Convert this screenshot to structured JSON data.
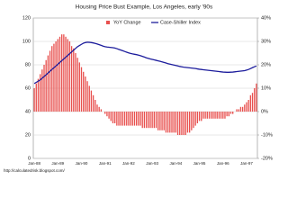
{
  "chart_data": {
    "type": "bar",
    "title": "Housing Price Bust Example, Los Angeles, early '90s",
    "source": "http://calculatedrisk.blogspot.com/",
    "categories": [
      "Jan-88",
      null,
      null,
      null,
      null,
      null,
      null,
      null,
      null,
      null,
      null,
      null,
      "Jan-89",
      null,
      null,
      null,
      null,
      null,
      null,
      null,
      null,
      null,
      null,
      null,
      "Jan-90",
      null,
      null,
      null,
      null,
      null,
      null,
      null,
      null,
      null,
      null,
      null,
      "Jan-91",
      null,
      null,
      null,
      null,
      null,
      null,
      null,
      null,
      null,
      null,
      null,
      "Jan-92",
      null,
      null,
      null,
      null,
      null,
      null,
      null,
      null,
      null,
      null,
      null,
      "Jan-93",
      null,
      null,
      null,
      null,
      null,
      null,
      null,
      null,
      null,
      null,
      null,
      "Jan-94",
      null,
      null,
      null,
      null,
      null,
      null,
      null,
      null,
      null,
      null,
      null,
      "Jan-95",
      null,
      null,
      null,
      null,
      null,
      null,
      null,
      null,
      null,
      null,
      null,
      "Jan-96",
      null,
      null,
      null,
      null,
      null,
      null,
      null,
      null,
      null,
      null,
      null,
      "Jan-97",
      null,
      null,
      null,
      null,
      null
    ],
    "series": [
      {
        "name": "YoY Change",
        "color": "#e8504e",
        "type": "bar",
        "axis": "y2",
        "values": [
          10,
          12,
          14,
          16,
          18,
          20,
          22,
          24,
          26,
          28,
          29,
          30,
          31,
          32,
          33,
          33,
          32,
          31,
          30,
          28,
          27,
          25,
          23,
          21,
          19,
          17,
          15,
          13,
          11,
          9,
          7,
          5,
          3,
          2,
          1,
          0,
          -1,
          -2,
          -3,
          -4,
          -5,
          -5,
          -6,
          -6,
          -6,
          -6,
          -6,
          -6,
          -6,
          -6,
          -6,
          -6,
          -6,
          -6,
          -6,
          -7,
          -7,
          -7,
          -7,
          -7,
          -7,
          -7,
          -7,
          -8,
          -8,
          -8,
          -8,
          -9,
          -9,
          -9,
          -9,
          -9,
          -9,
          -10,
          -10,
          -10,
          -10,
          -10,
          -9,
          -9,
          -8,
          -7,
          -6,
          -5,
          -4,
          -4,
          -3,
          -3,
          -3,
          -3,
          -3,
          -3,
          -3,
          -3,
          -3,
          -3,
          -3,
          -3,
          -2,
          -2,
          -1,
          -1,
          0,
          1,
          1,
          2,
          2,
          3,
          4,
          5,
          7,
          8,
          10,
          12
        ]
      },
      {
        "name": "Case-Shiller Index",
        "color": "#1c1c9c",
        "type": "line",
        "values": [
          64,
          65,
          66,
          67,
          68.5,
          70,
          71.5,
          73,
          74.5,
          76,
          77.5,
          79,
          80.5,
          82,
          83.5,
          85,
          86.5,
          88,
          89.5,
          91,
          92.5,
          94,
          95.5,
          96.5,
          97.5,
          98.5,
          99,
          99.3,
          99.2,
          99,
          98.7,
          98.3,
          97.8,
          97.2,
          96.6,
          96,
          95.5,
          95.2,
          95,
          94.8,
          94.6,
          94.3,
          93.8,
          93.2,
          92.6,
          92,
          91.4,
          90.8,
          90.2,
          89.7,
          89.3,
          89,
          88.7,
          88.3,
          87.8,
          87.2,
          86.6,
          86,
          85.5,
          85,
          84.6,
          84.2,
          83.8,
          83.4,
          83,
          82.5,
          82,
          81.5,
          81,
          80.6,
          80.2,
          79.8,
          79.4,
          79,
          78.6,
          78.3,
          78,
          77.8,
          77.6,
          77.4,
          77.2,
          77,
          76.8,
          76.5,
          76.2,
          76,
          75.8,
          75.6,
          75.4,
          75.2,
          75,
          74.8,
          74.6,
          74.4,
          74.2,
          74,
          73.8,
          73.7,
          73.6,
          73.6,
          73.7,
          73.8,
          74,
          74.2,
          74.4,
          74.6,
          74.8,
          75,
          75.5,
          76,
          76.8,
          77.6,
          78.3,
          79
        ]
      }
    ],
    "ylim": [
      0,
      120
    ],
    "yticks": [
      0,
      20,
      40,
      60,
      80,
      100,
      120
    ],
    "y2lim": [
      -20,
      40
    ],
    "y2ticks": [
      {
        "value": -20,
        "label": "-20%"
      },
      {
        "value": -10,
        "label": "-10%"
      },
      {
        "value": 0,
        "label": "0%"
      },
      {
        "value": 10,
        "label": "10%"
      },
      {
        "value": 20,
        "label": "20%"
      },
      {
        "value": 30,
        "label": "30%"
      },
      {
        "value": 40,
        "label": "40%"
      }
    ],
    "grid": true
  }
}
